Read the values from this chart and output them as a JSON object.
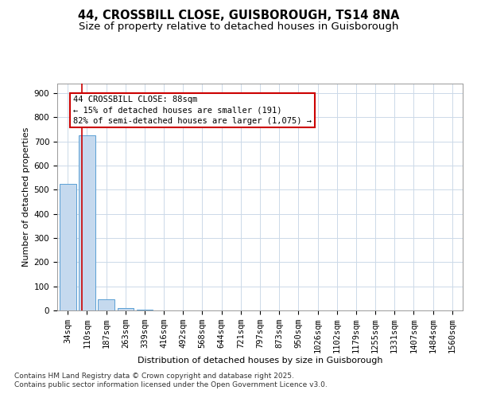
{
  "title": "44, CROSSBILL CLOSE, GUISBOROUGH, TS14 8NA",
  "subtitle": "Size of property relative to detached houses in Guisborough",
  "xlabel": "Distribution of detached houses by size in Guisborough",
  "ylabel": "Number of detached properties",
  "bins": [
    "34sqm",
    "110sqm",
    "187sqm",
    "263sqm",
    "339sqm",
    "416sqm",
    "492sqm",
    "568sqm",
    "644sqm",
    "721sqm",
    "797sqm",
    "873sqm",
    "950sqm",
    "1026sqm",
    "1102sqm",
    "1179sqm",
    "1255sqm",
    "1331sqm",
    "1407sqm",
    "1484sqm",
    "1560sqm"
  ],
  "values": [
    525,
    725,
    47,
    10,
    3,
    0,
    0,
    0,
    0,
    0,
    0,
    0,
    0,
    0,
    0,
    0,
    0,
    0,
    0,
    0,
    0
  ],
  "bar_color": "#c5d9ee",
  "bar_edge_color": "#5a9fd4",
  "vline_color": "#cc0000",
  "vline_x": 0.72,
  "ylim": [
    0,
    940
  ],
  "yticks": [
    0,
    100,
    200,
    300,
    400,
    500,
    600,
    700,
    800,
    900
  ],
  "annotation_line1": "44 CROSSBILL CLOSE: 88sqm",
  "annotation_line2": "← 15% of detached houses are smaller (191)",
  "annotation_line3": "82% of semi-detached houses are larger (1,075) →",
  "annotation_box_color": "#cc0000",
  "footer_line1": "Contains HM Land Registry data © Crown copyright and database right 2025.",
  "footer_line2": "Contains public sector information licensed under the Open Government Licence v3.0.",
  "bg_color": "#ffffff",
  "grid_color": "#ccd9e8",
  "title_fontsize": 10.5,
  "subtitle_fontsize": 9.5,
  "ylabel_fontsize": 8,
  "xlabel_fontsize": 8,
  "tick_fontsize": 7.5,
  "footer_fontsize": 6.5
}
